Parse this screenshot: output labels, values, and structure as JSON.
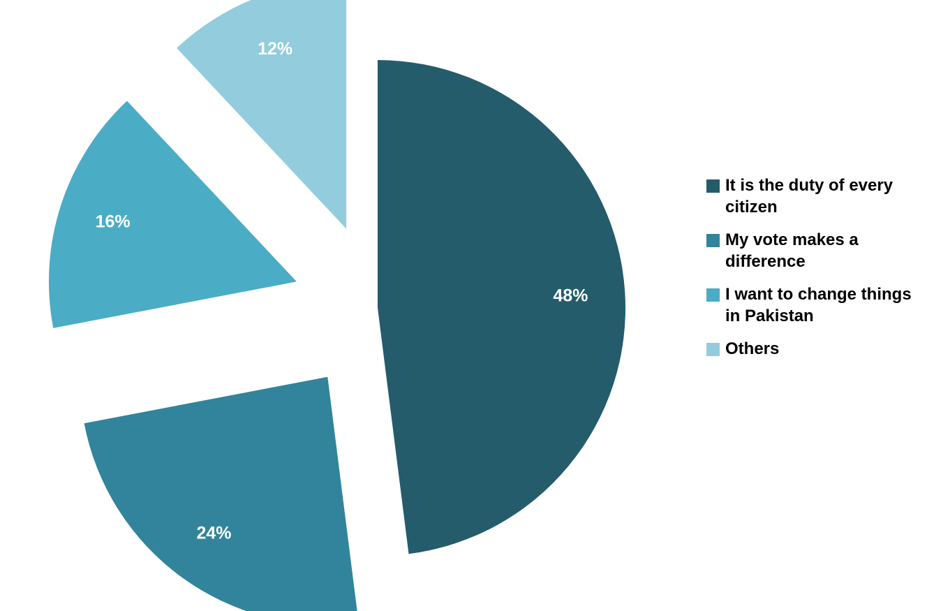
{
  "chart_data": {
    "type": "pie",
    "title": "",
    "slices": [
      {
        "label": "It is the duty of every citizen",
        "value": 48,
        "value_label": "48%",
        "color": "#245C6B"
      },
      {
        "label": "My vote makes a difference",
        "value": 24,
        "value_label": "24%",
        "color": "#31849B"
      },
      {
        "label": "I want to change things in Pakistan",
        "value": 16,
        "value_label": "16%",
        "color": "#4BACC6"
      },
      {
        "label": "Others",
        "value": 12,
        "value_label": "12%",
        "color": "#93CDDD"
      }
    ],
    "exploded": true,
    "legend_position": "right"
  }
}
